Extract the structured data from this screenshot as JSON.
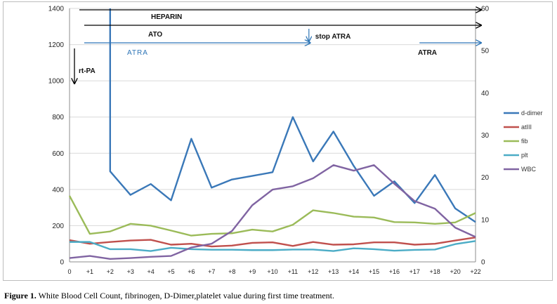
{
  "caption": {
    "label": "Figure 1.",
    "text": " White Blood Cell Count, fibrinogen, D-Dimer,platelet value during first time treatment."
  },
  "chart_data": {
    "type": "line",
    "title": "",
    "xlabel": "",
    "ylabel": "",
    "categories": [
      "0",
      "+1",
      "+2",
      "+3",
      "+4",
      "+5",
      "+6",
      "+7",
      "+8",
      "+9",
      "+10",
      "+11",
      "+12",
      "+13",
      "+14",
      "+15",
      "+16",
      "+17",
      "+18",
      "+20",
      "+22"
    ],
    "y_left": {
      "ylim": [
        0,
        1400
      ],
      "ticks": [
        0,
        200,
        400,
        600,
        800,
        1000,
        1200,
        1400
      ]
    },
    "y_right": {
      "ylim": [
        0,
        60
      ],
      "ticks": [
        0,
        10,
        20,
        30,
        40,
        50,
        60
      ]
    },
    "grid": "horizontal",
    "legend_position": "right",
    "series": [
      {
        "name": "d-dimer",
        "axis": "left",
        "color": "#3a78b8",
        "values": [
          null,
          null,
          500,
          370,
          430,
          340,
          680,
          410,
          455,
          475,
          495,
          800,
          555,
          720,
          530,
          365,
          445,
          325,
          480,
          295,
          220
        ],
        "note_peak": 1400
      },
      {
        "name": "atIII",
        "axis": "left",
        "color": "#c0504d",
        "values": [
          120,
          100,
          110,
          118,
          122,
          95,
          100,
          85,
          90,
          105,
          108,
          88,
          110,
          95,
          97,
          108,
          108,
          95,
          100,
          118,
          135
        ]
      },
      {
        "name": "fib",
        "axis": "left",
        "color": "#9bbb59",
        "values": [
          365,
          155,
          168,
          210,
          200,
          173,
          145,
          155,
          158,
          178,
          168,
          205,
          285,
          270,
          250,
          245,
          220,
          218,
          210,
          218,
          270
        ]
      },
      {
        "name": "plt",
        "axis": "left",
        "color": "#4bacc6",
        "values": [
          110,
          110,
          70,
          70,
          60,
          78,
          70,
          67,
          67,
          65,
          65,
          68,
          68,
          60,
          75,
          70,
          62,
          66,
          68,
          98,
          115
        ]
      },
      {
        "name": "WBC",
        "axis": "right",
        "color": "#8064a2",
        "values": [
          0.9,
          1.4,
          0.7,
          0.9,
          1.2,
          1.4,
          3.4,
          4.3,
          7.3,
          13.4,
          17.1,
          17.9,
          19.8,
          22.9,
          21.6,
          22.9,
          18.5,
          14.4,
          12.6,
          8.1,
          5.9
        ]
      }
    ],
    "annotations": [
      {
        "text": "HEPARIN",
        "type": "arrow",
        "color": "#000000",
        "from": "+2",
        "to": "+22"
      },
      {
        "text": "ATO",
        "type": "arrow",
        "color": "#000000",
        "from": "+1",
        "to": "+22"
      },
      {
        "text": "ATRA",
        "type": "arrow",
        "color": "#2e75b6",
        "from": "+1",
        "to": "+12"
      },
      {
        "text": "stop ATRA",
        "type": "marker",
        "color": "#2e75b6",
        "at": "+12"
      },
      {
        "text": "ATRA",
        "type": "arrow",
        "color": "#2e75b6",
        "from": "+18",
        "to": "+22"
      },
      {
        "text": "rt-PA",
        "type": "marker",
        "color": "#000000",
        "at": "+1"
      }
    ]
  }
}
